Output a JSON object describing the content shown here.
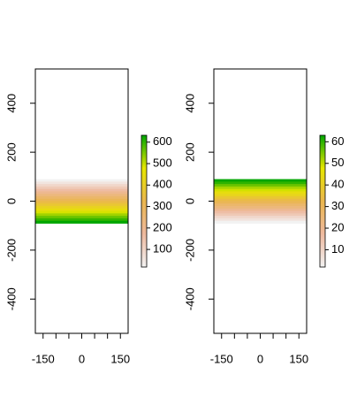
{
  "chart_data": [
    {
      "type": "raster",
      "xlim": [
        -180,
        180
      ],
      "ylim": [
        -540,
        540
      ],
      "xticks": [
        -150,
        -100,
        -50,
        0,
        50,
        100,
        150
      ],
      "yticks": [
        -400,
        -200,
        0,
        200,
        400
      ],
      "ybins": [
        90,
        80,
        70,
        60,
        50,
        40,
        30,
        20,
        10,
        0,
        -10,
        -20,
        -30,
        -40,
        -50,
        -60,
        -70,
        -80,
        -90
      ],
      "values": [
        18,
        54,
        90,
        126,
        163,
        199,
        235,
        271,
        307,
        343,
        379,
        415,
        451,
        487,
        524,
        560,
        596,
        632
      ],
      "colormap": [
        "#F2F2F2",
        "#EEB99F",
        "#EAB64E",
        "#E6E600",
        "#00A600"
      ],
      "zlim": [
        18,
        632
      ],
      "zticks": [
        100,
        200,
        300,
        400,
        500,
        600
      ]
    },
    {
      "type": "raster",
      "xlim": [
        -180,
        180
      ],
      "ylim": [
        -540,
        540
      ],
      "xticks": [
        -150,
        -100,
        -50,
        0,
        50,
        100,
        150
      ],
      "yticks": [
        -400,
        -200,
        0,
        200,
        400
      ],
      "ybins": [
        90,
        80,
        70,
        60,
        50,
        40,
        30,
        20,
        10,
        0,
        -10,
        -20,
        -30,
        -40,
        -50,
        -60,
        -70,
        -80,
        -90
      ],
      "values": [
        63,
        60,
        56,
        52,
        49,
        45,
        42,
        38,
        34,
        31,
        27,
        24,
        20,
        16,
        13,
        9,
        6,
        2
      ],
      "colormap": [
        "#F2F2F2",
        "#EEB99F",
        "#EAB64E",
        "#E6E600",
        "#00A600"
      ],
      "zlim": [
        2,
        63
      ],
      "zticks": [
        10,
        20,
        30,
        40,
        50,
        60
      ]
    }
  ]
}
